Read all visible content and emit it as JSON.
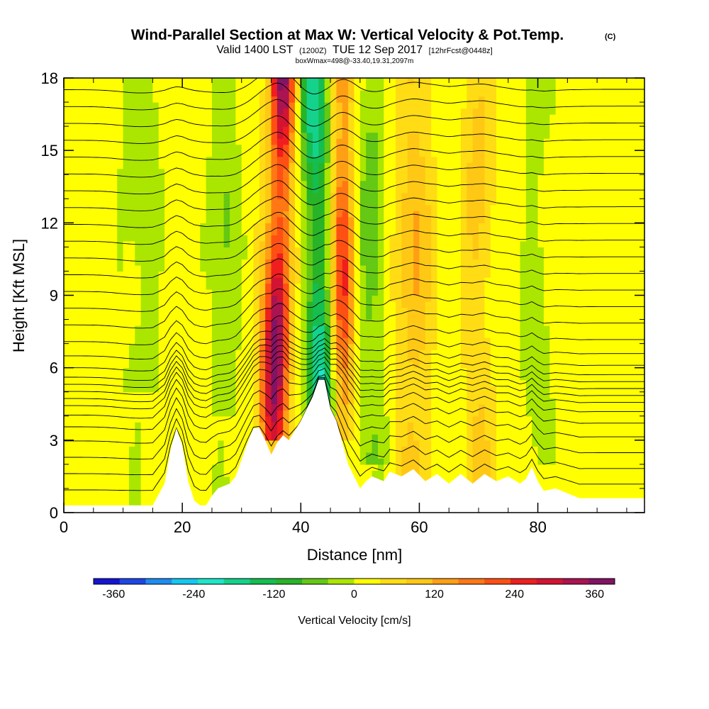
{
  "title": {
    "main": "Wind-Parallel Section at Max W: Vertical Velocity & Pot.Temp.",
    "copyright": "(C)",
    "valid_prefix": "Valid 1400 LST",
    "valid_utc": "(1200Z)",
    "valid_date": "TUE 12 Sep 2017",
    "forecast": "[12hrFcst@0448z]",
    "box_info": "boxWmax=498@-33.40,19.31,2097m"
  },
  "chart_data": {
    "type": "heatmap",
    "xlabel": "Distance [nm]",
    "ylabel": "Height [Kft MSL]",
    "xlim": [
      0,
      98
    ],
    "ylim": [
      0,
      18
    ],
    "x_ticks": [
      0,
      20,
      40,
      60,
      80
    ],
    "x_tick_labels": [
      "0",
      "20",
      "40",
      "60",
      "80"
    ],
    "y_ticks": [
      0,
      3,
      6,
      9,
      12,
      15,
      18
    ],
    "y_tick_labels": [
      "0",
      "3",
      "6",
      "9",
      "12",
      "15",
      "18"
    ],
    "colorbar": {
      "label": "Vertical Velocity [cm/s]",
      "range": [
        -390,
        390
      ],
      "step": 40,
      "tick_values": [
        -360,
        -240,
        -120,
        0,
        120,
        240,
        360
      ],
      "tick_labels": [
        "-360",
        "-240",
        "-120",
        "0",
        "120",
        "240",
        "360"
      ],
      "colors": [
        "#1414d2",
        "#1e46e6",
        "#1e8cf0",
        "#14c8f0",
        "#1ee6c8",
        "#14d28c",
        "#14be50",
        "#28b428",
        "#64c814",
        "#aae600",
        "#ffff00",
        "#ffdc14",
        "#ffc814",
        "#ffa014",
        "#ff7814",
        "#ff5014",
        "#f01e1e",
        "#d21432",
        "#aa1450",
        "#821464"
      ]
    },
    "vertical_velocity_columns": [
      {
        "x": 13,
        "width": 3,
        "peak": -60,
        "top": 18,
        "bottom": 5
      },
      {
        "x": 27,
        "width": 2.5,
        "peak": -70,
        "top": 18,
        "bottom": 4
      },
      {
        "x": 36,
        "width": 2.2,
        "peak": 380,
        "top": 18,
        "bottom": 3,
        "tilt": -0.12
      },
      {
        "x": 43,
        "width": 2.4,
        "peak": -230,
        "top": 18,
        "bottom": 4,
        "tilt": 0.1
      },
      {
        "x": 47,
        "width": 2,
        "peak": 230,
        "top": 18,
        "bottom": 3
      },
      {
        "x": 52,
        "width": 2.5,
        "peak": -90,
        "top": 18,
        "bottom": 2
      },
      {
        "x": 59,
        "width": 3,
        "peak": 110,
        "top": 18,
        "bottom": 1
      },
      {
        "x": 70,
        "width": 2.5,
        "peak": 80,
        "top": 18,
        "bottom": 1
      },
      {
        "x": 80,
        "width": 3,
        "peak": -40,
        "top": 18,
        "bottom": 2
      }
    ],
    "terrain": {
      "x": [
        0,
        15,
        17,
        18,
        19,
        20,
        21,
        22,
        23,
        24,
        25,
        26,
        28,
        29,
        30,
        31,
        32,
        33,
        34,
        35,
        36,
        37,
        38,
        39,
        40,
        41,
        42,
        43,
        44,
        45,
        46,
        47,
        48,
        49,
        50,
        51,
        52,
        54,
        55,
        57,
        59,
        61,
        63,
        65,
        67,
        69,
        71,
        73,
        75,
        77,
        78,
        79,
        80,
        81,
        83,
        85,
        87,
        90,
        95,
        98
      ],
      "height_kft": [
        0.3,
        0.3,
        1.2,
        2.6,
        3.5,
        2.8,
        1.3,
        0.5,
        0.3,
        0.3,
        0.7,
        1.0,
        1.2,
        1.5,
        2.2,
        2.9,
        3.5,
        3.5,
        3.0,
        2.4,
        2.9,
        3.2,
        3.0,
        3.4,
        3.8,
        4.3,
        4.8,
        5.5,
        5.5,
        4.3,
        3.8,
        2.9,
        2.0,
        1.5,
        1.0,
        1.3,
        1.5,
        1.3,
        1.7,
        1.5,
        1.8,
        1.3,
        1.6,
        1.2,
        1.6,
        1.2,
        1.6,
        1.3,
        1.5,
        1.2,
        1.4,
        1.9,
        1.3,
        0.9,
        1.0,
        0.8,
        0.6,
        0.6,
        0.6,
        0.6
      ]
    },
    "isentropes": {
      "type": "line",
      "levels_kft_far_field": [
        0.7,
        1.4,
        2.1,
        2.8,
        3.4,
        3.9,
        4.3,
        4.6,
        4.9,
        5.2,
        5.5,
        5.9,
        6.4,
        7.0,
        7.7,
        8.4,
        9.1,
        9.8,
        10.5,
        11.2,
        11.9,
        12.6,
        13.3,
        14.0,
        14.7,
        15.4,
        16.1,
        16.8,
        17.5
      ]
    }
  }
}
